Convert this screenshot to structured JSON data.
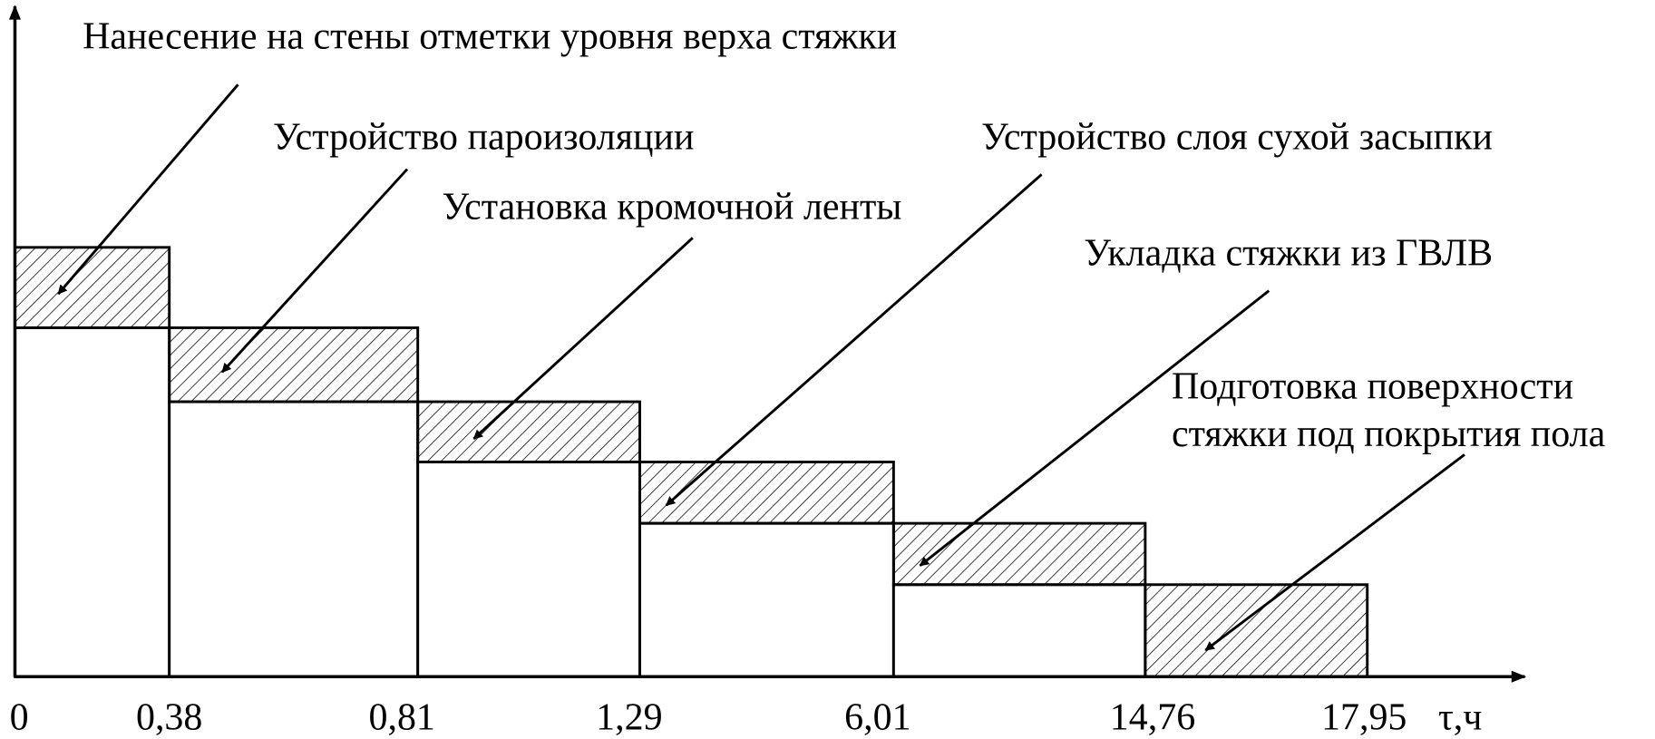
{
  "stages": [
    {
      "label": "Нанесение на стены отметки уровня верха стяжки"
    },
    {
      "label": "Устройство пароизоляции"
    },
    {
      "label": "Установка кромочной ленты"
    },
    {
      "label": "Устройство слоя сухой засыпки"
    },
    {
      "label": "Укладка стяжки из ГВЛВ"
    },
    {
      "label_lines": [
        "Подготовка поверхности",
        "стяжки под покрытия пола"
      ]
    }
  ],
  "axis": {
    "ticks": [
      "0",
      "0,38",
      "0,81",
      "1,29",
      "6,01",
      "14,76",
      "17,95"
    ],
    "unit": "τ,ч"
  }
}
